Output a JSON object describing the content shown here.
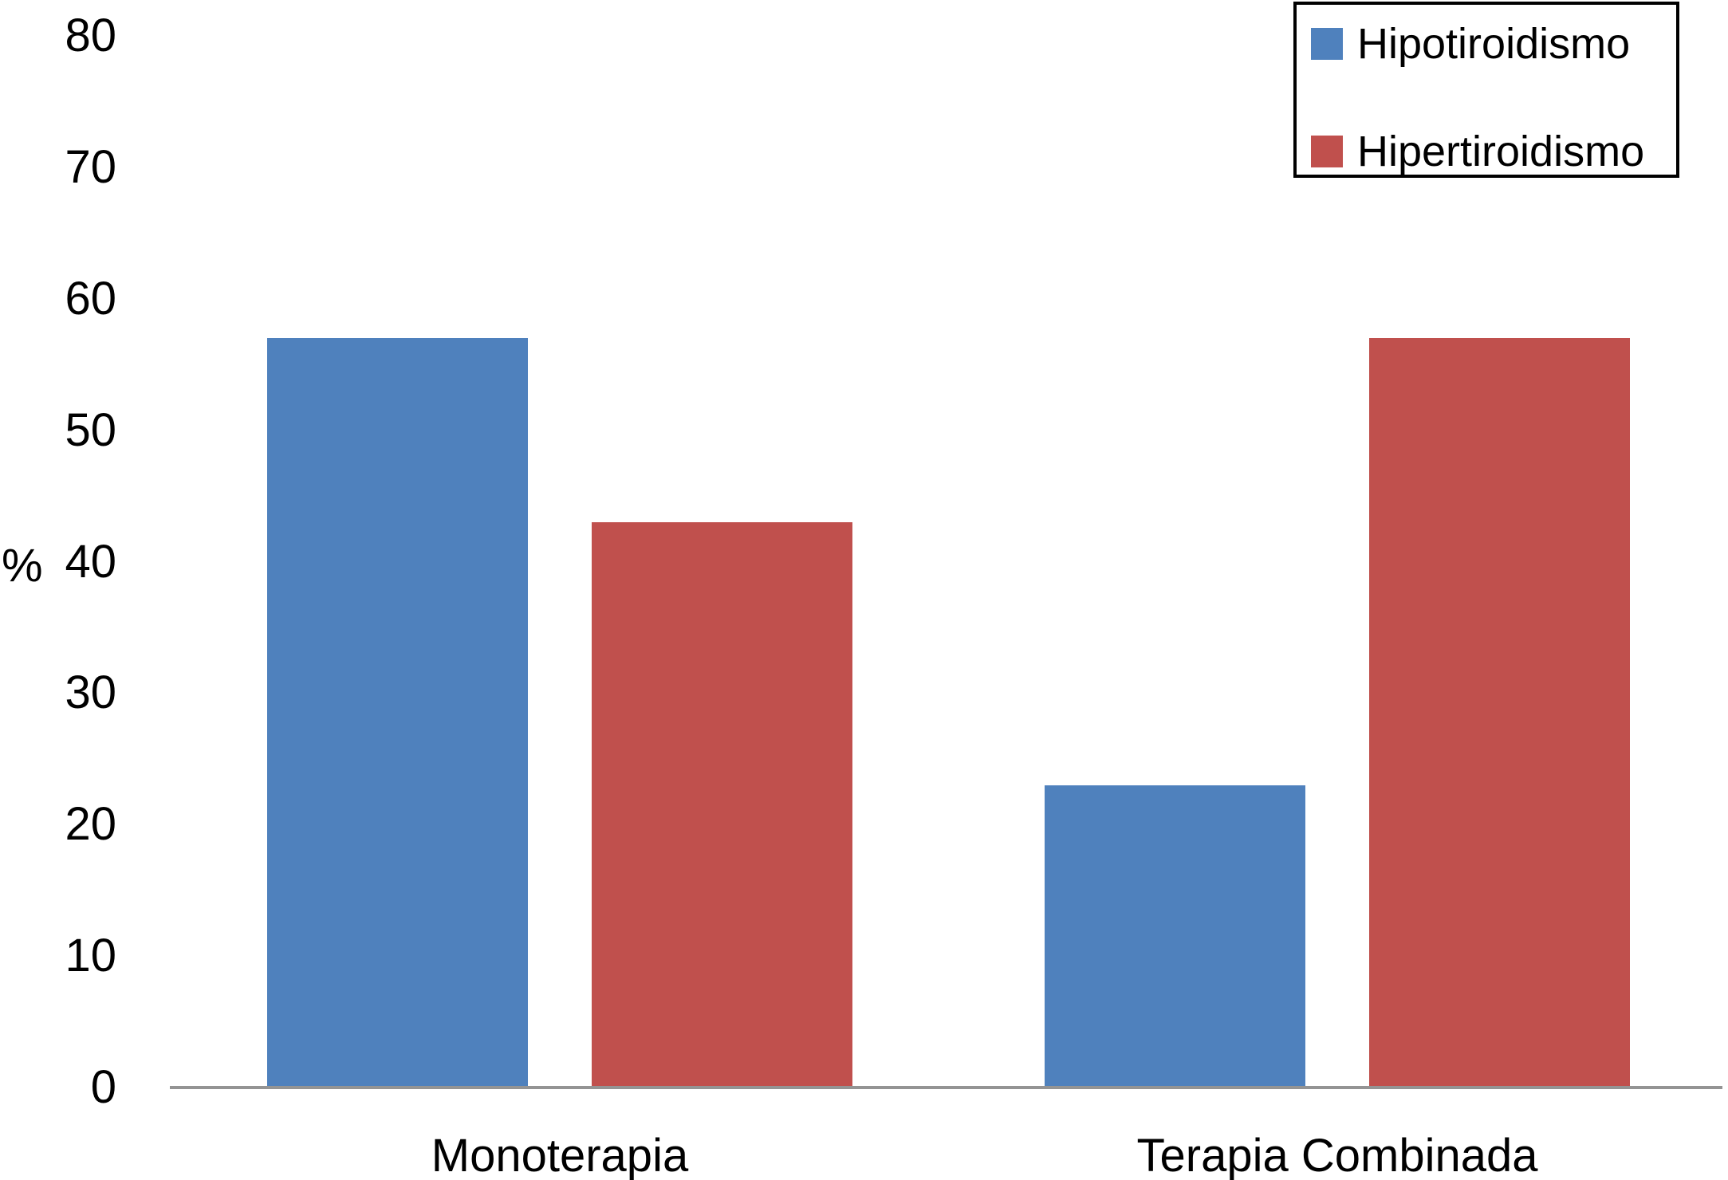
{
  "chart_data": {
    "type": "bar",
    "title": "",
    "categories": [
      "Monoterapia",
      "Terapia Combinada"
    ],
    "series": [
      {
        "name": "Hipotiroidismo",
        "color": "#4f81bd",
        "values": [
          57,
          23
        ]
      },
      {
        "name": "Hipertiroidismo",
        "color": "#c0504d",
        "values": [
          43,
          57
        ]
      }
    ],
    "ylabel": "%",
    "ylim": [
      0,
      80
    ],
    "yticks": [
      0,
      10,
      20,
      30,
      40,
      50,
      60,
      70,
      80
    ],
    "grid": false,
    "legend_position": "top-right",
    "legend_border": true
  },
  "colors": {
    "axis_line": "#949494",
    "text": "#000000",
    "background": "#ffffff",
    "legend_border": "#000000"
  }
}
